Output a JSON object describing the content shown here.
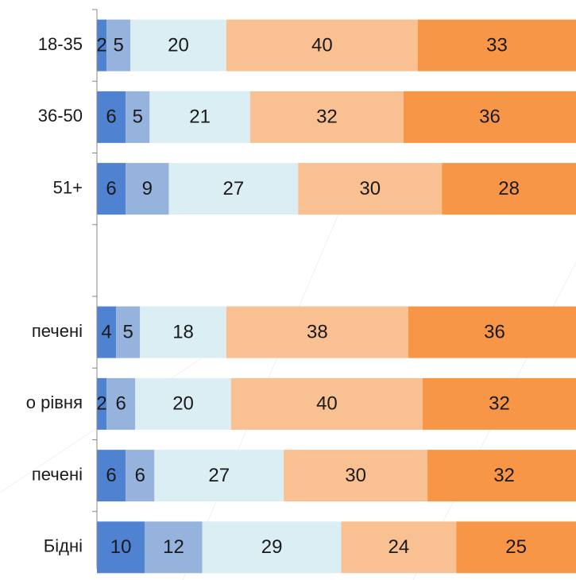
{
  "chart_data": {
    "type": "stacked_barh",
    "categories": [
      "18-35",
      "36-50",
      "51+",
      null,
      "печені",
      "о рівня",
      "печені",
      "Бідні"
    ],
    "series": [
      {
        "color": "#4f83d1",
        "values": [
          2,
          6,
          6,
          null,
          4,
          2,
          6,
          10
        ]
      },
      {
        "color": "#95b3dc",
        "values": [
          5,
          5,
          9,
          null,
          5,
          6,
          6,
          12
        ]
      },
      {
        "color": "#dbeef4",
        "values": [
          20,
          21,
          27,
          null,
          18,
          20,
          27,
          29
        ]
      },
      {
        "color": "#f9c092",
        "values": [
          40,
          32,
          30,
          null,
          38,
          40,
          30,
          24
        ]
      },
      {
        "color": "#f79646",
        "values": [
          33,
          36,
          28,
          null,
          36,
          32,
          32,
          25
        ]
      }
    ],
    "xlim": [
      0,
      100
    ]
  }
}
